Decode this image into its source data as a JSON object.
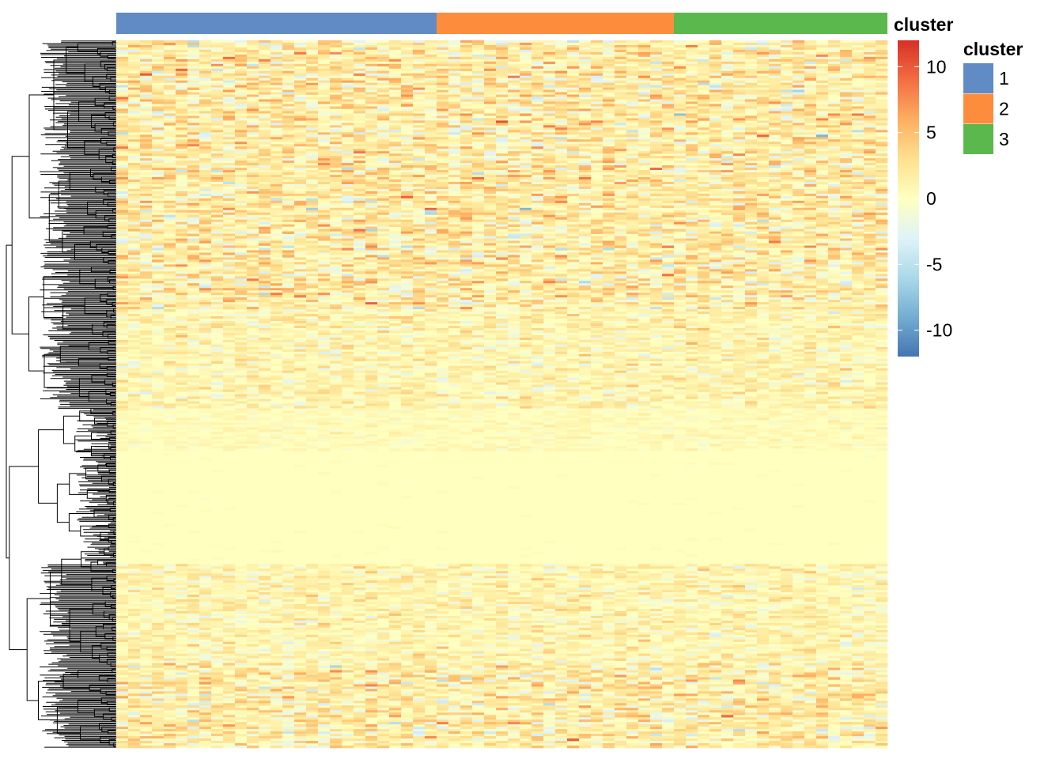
{
  "chart_data": {
    "type": "heatmap",
    "annotation_title": "cluster",
    "clusters": [
      {
        "label": "1",
        "color": "#608BC5",
        "n_columns": 27
      },
      {
        "label": "2",
        "color": "#FD8D3C",
        "n_columns": 20
      },
      {
        "label": "3",
        "color": "#5BB84C",
        "n_columns": 18
      }
    ],
    "colorbar": {
      "range": [
        -12,
        12
      ],
      "ticks": [
        "10",
        "5",
        "0",
        "-5",
        "-10"
      ],
      "tick_values": [
        10,
        5,
        0,
        -5,
        -10
      ],
      "colors": [
        "#D73027",
        "#F46D43",
        "#FDAE61",
        "#FEE090",
        "#FFFFBF",
        "#E0F3F8",
        "#ABD9E9",
        "#74ADD1",
        "#4575B4"
      ]
    },
    "row_dendrogram": "left",
    "note": "~65 columns, many hundreds of rows; center band of rows near 0, upper and lower bands with mixed positive values"
  }
}
